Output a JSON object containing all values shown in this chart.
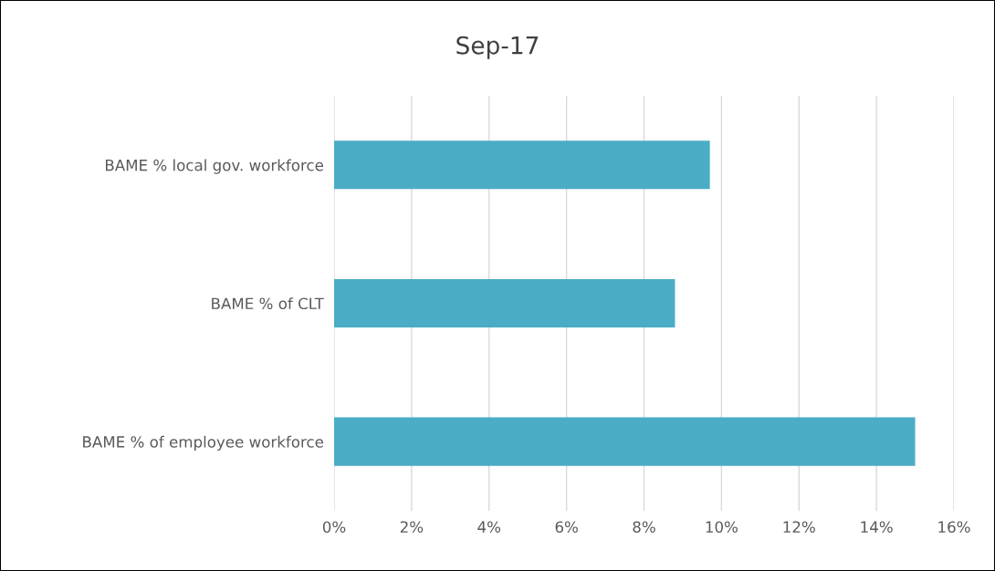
{
  "chart_data": {
    "type": "bar",
    "orientation": "horizontal",
    "title": "Sep-17",
    "categories": [
      "BAME % local gov. workforce",
      "BAME % of CLT",
      "BAME % of employee workforce"
    ],
    "values": [
      9.7,
      8.8,
      15.0
    ],
    "color": "#4bacc6",
    "xlim": [
      0,
      16
    ],
    "xticks": [
      {
        "value": 0,
        "label": "0%"
      },
      {
        "value": 2,
        "label": "2%"
      },
      {
        "value": 4,
        "label": "4%"
      },
      {
        "value": 6,
        "label": "6%"
      },
      {
        "value": 8,
        "label": "8%"
      },
      {
        "value": 10,
        "label": "10%"
      },
      {
        "value": 12,
        "label": "12%"
      },
      {
        "value": 14,
        "label": "14%"
      },
      {
        "value": 16,
        "label": "16%"
      }
    ],
    "grid": "x",
    "legend": false
  }
}
